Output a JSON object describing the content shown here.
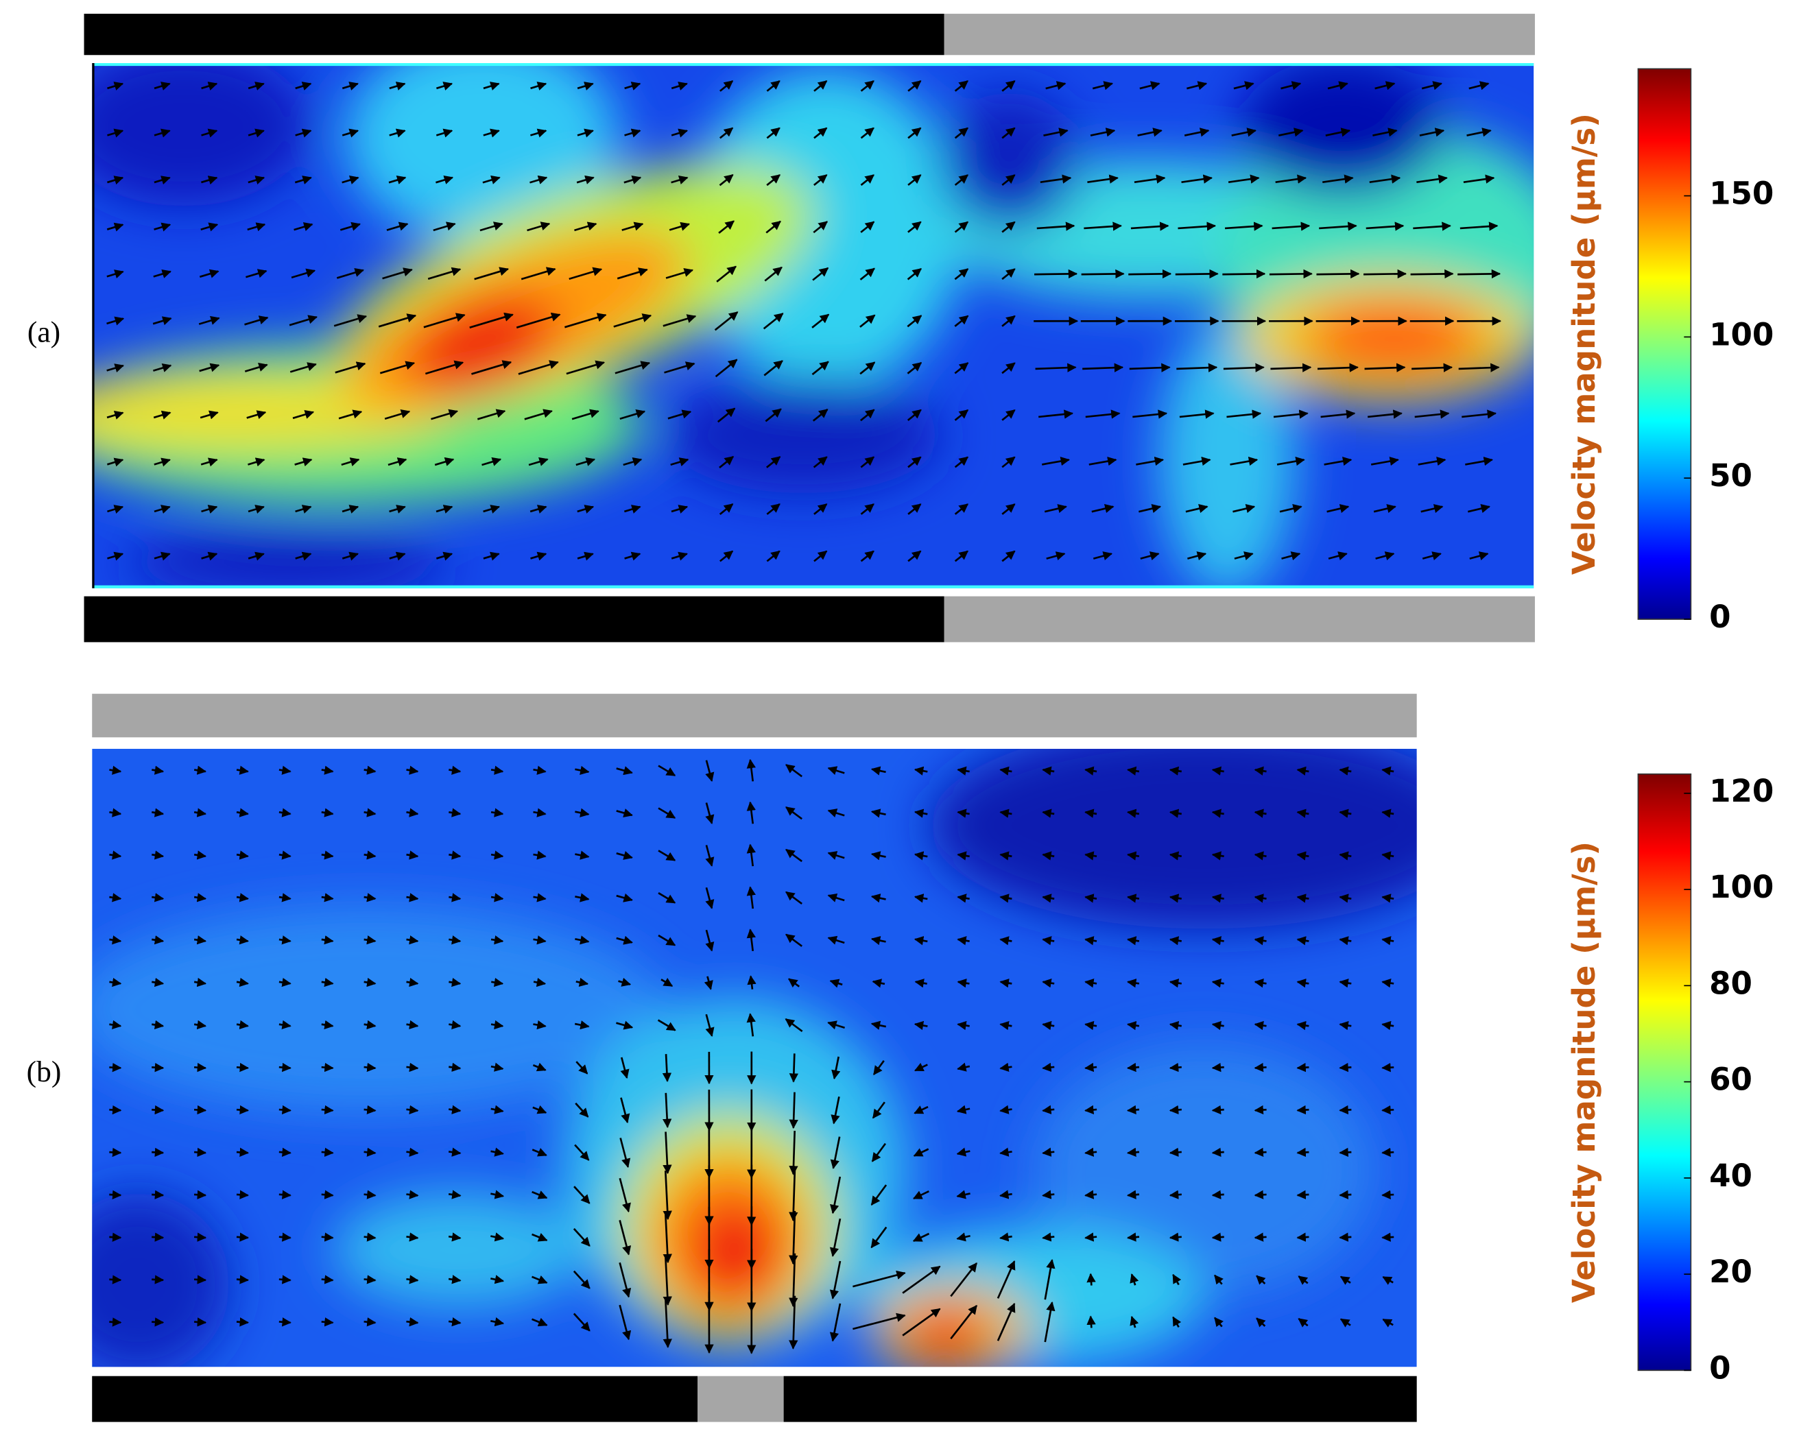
{
  "chart_data": [
    {
      "type": "heatmap",
      "label": "(a)",
      "colorbar_label": "Velocity magnitude (μm/s)",
      "colormap": "jet",
      "clim": [
        0,
        195
      ],
      "cticks": [
        0,
        50,
        100,
        150
      ]
    },
    {
      "type": "heatmap",
      "label": "(b)",
      "colorbar_label": "Velocity magnitude (μm/s)",
      "colormap": "jet",
      "clim": [
        0,
        124
      ],
      "cticks": [
        0,
        20,
        40,
        60,
        80,
        100,
        120
      ]
    }
  ]
}
